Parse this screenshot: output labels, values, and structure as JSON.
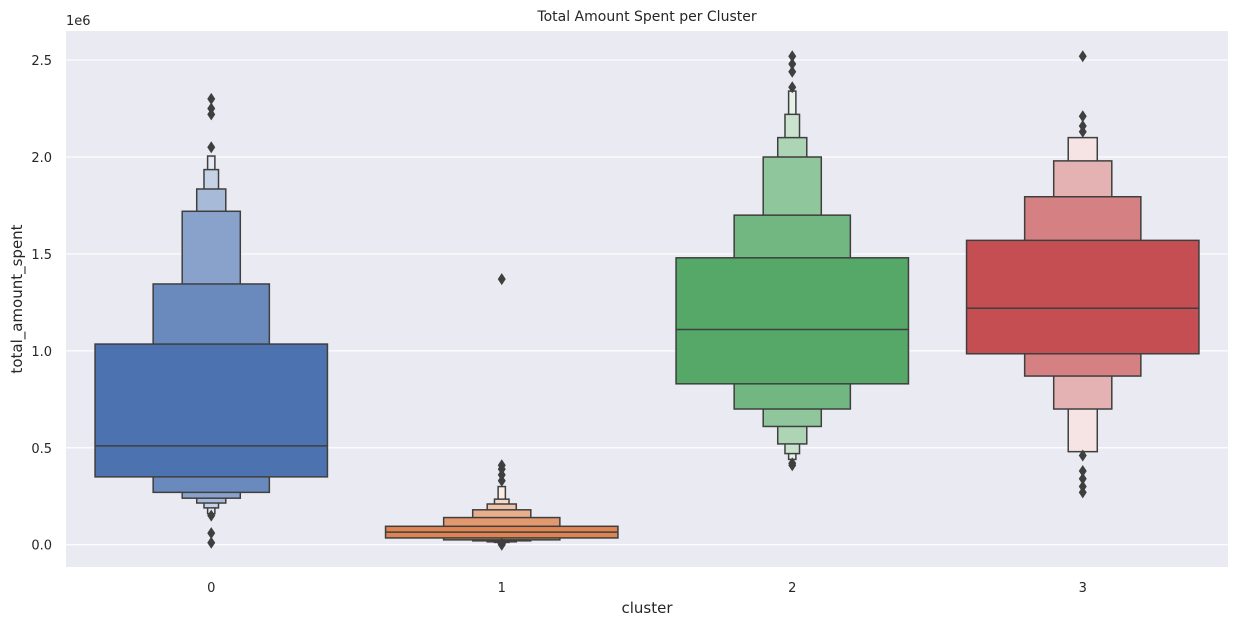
{
  "chart_data": {
    "type": "boxen",
    "title": "Total Amount Spent per Cluster",
    "xlabel": "cluster",
    "ylabel": "total_amount_spent",
    "y_offset_label": "1e6",
    "y_scale_factor": 1000000,
    "ylim": [
      -0.115,
      2.65
    ],
    "y_ticks": [
      0.0,
      0.5,
      1.0,
      1.5,
      2.0,
      2.5
    ],
    "y_tick_labels": [
      "0.0",
      "0.5",
      "1.0",
      "1.5",
      "2.0",
      "2.5"
    ],
    "categories": [
      "0",
      "1",
      "2",
      "3"
    ],
    "grid": true,
    "series": [
      {
        "category": "0",
        "median": 0.51,
        "boxes": [
          [
            0.35,
            1.035
          ],
          [
            0.27,
            1.345
          ],
          [
            0.24,
            1.72
          ],
          [
            0.215,
            1.835
          ],
          [
            0.19,
            1.935
          ],
          [
            0.16,
            2.005
          ]
        ],
        "outliers": [
          0.15,
          0.06,
          0.01,
          2.05,
          2.22,
          2.25,
          2.3
        ]
      },
      {
        "category": "1",
        "median": 0.065,
        "boxes": [
          [
            0.035,
            0.095
          ],
          [
            0.025,
            0.14
          ],
          [
            0.02,
            0.18
          ],
          [
            0.015,
            0.21
          ],
          [
            0.012,
            0.235
          ],
          [
            0.01,
            0.3
          ]
        ],
        "outliers": [
          0.0,
          0.005,
          0.33,
          0.36,
          0.39,
          0.41,
          1.37
        ]
      },
      {
        "category": "2",
        "median": 1.11,
        "boxes": [
          [
            0.83,
            1.48
          ],
          [
            0.7,
            1.7
          ],
          [
            0.61,
            2.0
          ],
          [
            0.52,
            2.1
          ],
          [
            0.47,
            2.22
          ],
          [
            0.44,
            2.34
          ]
        ],
        "outliers": [
          0.41,
          0.42,
          2.36,
          2.44,
          2.48,
          2.52
        ]
      },
      {
        "category": "3",
        "median": 1.22,
        "boxes": [
          [
            0.985,
            1.57
          ],
          [
            0.87,
            1.795
          ],
          [
            0.7,
            1.98
          ],
          [
            0.48,
            2.1
          ]
        ],
        "outliers": [
          0.27,
          0.3,
          0.34,
          0.38,
          0.46,
          2.13,
          2.16,
          2.21,
          2.52
        ]
      }
    ]
  },
  "colors": {
    "background": "#EAEAF2",
    "grid": "#FFFFFF",
    "edge": "#3F3F3F",
    "text": "#262626",
    "cluster_0": "#4C72B0",
    "cluster_1": "#DD8452",
    "cluster_2": "#55A868",
    "cluster_3": "#C44E52"
  }
}
